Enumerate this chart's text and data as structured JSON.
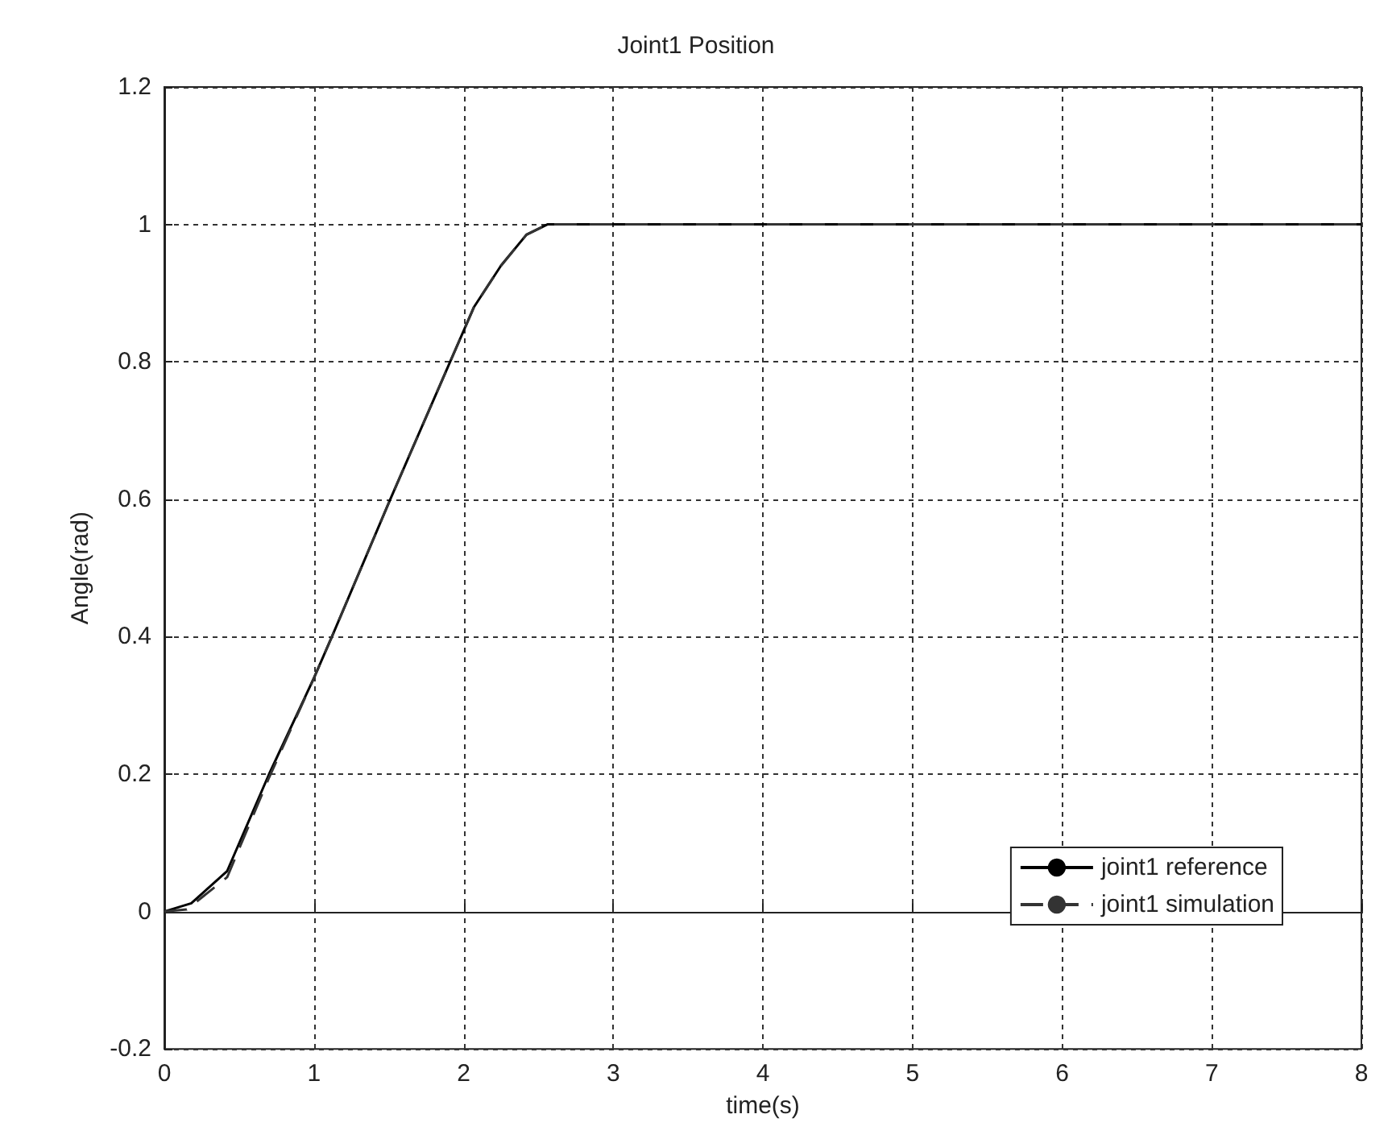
{
  "chart_data": {
    "type": "line",
    "title": "Joint1 Position",
    "xlabel": "time(s)",
    "ylabel": "Angle(rad)",
    "xlim": [
      0,
      8
    ],
    "xticks": [
      0,
      1,
      2,
      3,
      4,
      5,
      6,
      7,
      8
    ],
    "ylim": [
      -0.2,
      1.2
    ],
    "yticks": [
      -0.2,
      0,
      0.2,
      0.4,
      0.6,
      0.8,
      1,
      1.2
    ],
    "grid": true,
    "legend": "bottom right",
    "marker": "none",
    "series": [
      {
        "name": "joint1 reference",
        "color": "#000000",
        "line_style": "solid",
        "x": [
          0,
          0.18,
          0.42,
          0.7,
          1.0,
          1.12,
          1.51,
          1.91,
          2.07,
          2.25,
          2.42,
          2.56,
          3,
          4,
          5,
          6,
          7,
          8
        ],
        "values": [
          0,
          0.012,
          0.059,
          0.2,
          0.34,
          0.4,
          0.6,
          0.8,
          0.88,
          0.94,
          0.985,
          1,
          1,
          1,
          1,
          1,
          1,
          1
        ]
      },
      {
        "name": "joint1 simulation",
        "color": "#333333",
        "line_style": "dashed",
        "x": [
          0,
          0.15,
          0.42,
          0.7,
          1.0,
          1.12,
          1.51,
          1.91,
          2.07,
          2.25,
          2.42,
          2.56,
          3,
          4,
          5,
          6,
          7,
          8
        ],
        "values": [
          0,
          0.003,
          0.05,
          0.195,
          0.34,
          0.4,
          0.6,
          0.8,
          0.88,
          0.94,
          0.985,
          1,
          1,
          1,
          1,
          1,
          1,
          1
        ]
      }
    ]
  }
}
